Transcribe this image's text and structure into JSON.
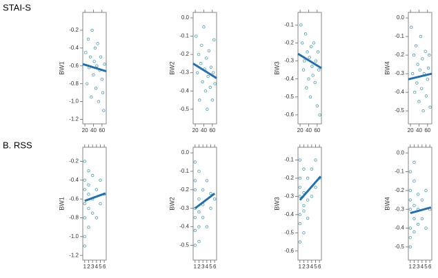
{
  "sections": [
    "STAI-S",
    "B. RSS"
  ],
  "chart_data": [
    {
      "type": "scatter",
      "ylabel": "BW1",
      "xlim": [
        15,
        70
      ],
      "xticks": [
        20,
        40,
        60
      ],
      "ylim": [
        -1.25,
        0
      ],
      "yticks": [
        -0.2,
        -0.4,
        -0.6,
        -0.8,
        {
          "value": -1.0,
          "label": "-1.0"
        },
        -1.2
      ],
      "points": {
        "color": "#4a9bb0",
        "x": [
          22,
          25,
          28,
          30,
          33,
          35,
          37,
          40,
          42,
          44,
          46,
          48,
          50,
          52,
          55,
          57,
          60,
          62,
          64,
          66
        ],
        "y": [
          -0.45,
          -0.8,
          -0.3,
          -0.62,
          -0.5,
          -0.95,
          -0.2,
          -0.7,
          -0.55,
          -0.4,
          -0.85,
          -0.6,
          -0.35,
          -1.0,
          -0.65,
          -0.5,
          -0.75,
          -0.9,
          -1.1,
          -0.58
        ]
      },
      "fit": {
        "color": "#1f6fb4",
        "x": [
          15,
          70
        ],
        "y": [
          -0.58,
          -0.66
        ]
      }
    },
    {
      "type": "scatter",
      "ylabel": "BW2",
      "xlim": [
        15,
        70
      ],
      "xticks": [
        20,
        40,
        60
      ],
      "ylim": [
        -0.58,
        0.03
      ],
      "yticks": [
        {
          "value": 0,
          "label": "0.0"
        },
        -0.1,
        -0.2,
        -0.3,
        -0.4,
        -0.5
      ],
      "points": {
        "color": "#4a9bb0",
        "x": [
          22,
          25,
          28,
          30,
          33,
          35,
          37,
          40,
          42,
          44,
          46,
          48,
          50,
          52,
          55,
          57,
          60,
          62,
          64,
          66
        ],
        "y": [
          -0.1,
          -0.3,
          -0.2,
          -0.45,
          -0.25,
          -0.15,
          -0.35,
          -0.05,
          -0.28,
          -0.4,
          -0.22,
          -0.5,
          -0.32,
          -0.18,
          -0.38,
          -0.27,
          -0.45,
          -0.3,
          -0.12,
          -0.36
        ]
      },
      "fit": {
        "color": "#1f6fb4",
        "x": [
          15,
          70
        ],
        "y": [
          -0.25,
          -0.33
        ]
      }
    },
    {
      "type": "scatter",
      "ylabel": "BW3",
      "xlim": [
        15,
        70
      ],
      "xticks": [
        20,
        40,
        60
      ],
      "ylim": [
        -0.65,
        -0.03
      ],
      "yticks": [
        -0.1,
        -0.2,
        -0.3,
        -0.4,
        -0.5,
        -0.6
      ],
      "points": {
        "color": "#4a9bb0",
        "x": [
          22,
          25,
          28,
          30,
          33,
          35,
          37,
          40,
          42,
          44,
          46,
          48,
          50,
          52,
          55,
          57,
          60,
          62,
          64,
          66
        ],
        "y": [
          -0.1,
          -0.2,
          -0.35,
          -0.3,
          -0.15,
          -0.45,
          -0.25,
          -0.4,
          -0.28,
          -0.5,
          -0.22,
          -0.33,
          -0.38,
          -0.2,
          -0.42,
          -0.3,
          -0.55,
          -0.25,
          -0.35,
          -0.6
        ]
      },
      "fit": {
        "color": "#1f6fb4",
        "x": [
          15,
          70
        ],
        "y": [
          -0.26,
          -0.34
        ]
      }
    },
    {
      "type": "scatter",
      "ylabel": "BW4",
      "xlim": [
        15,
        70
      ],
      "xticks": [
        20,
        40,
        60
      ],
      "ylim": [
        -0.57,
        0.03
      ],
      "yticks": [
        {
          "value": 0,
          "label": "0.0"
        },
        -0.1,
        -0.2,
        -0.3,
        -0.4,
        -0.5
      ],
      "points": {
        "color": "#4a9bb0",
        "x": [
          22,
          25,
          28,
          30,
          33,
          35,
          37,
          40,
          42,
          44,
          46,
          48,
          50,
          52,
          55,
          57,
          60,
          62,
          64,
          66
        ],
        "y": [
          -0.05,
          -0.3,
          -0.2,
          -0.4,
          -0.15,
          -0.35,
          -0.25,
          -0.45,
          -0.28,
          -0.1,
          -0.38,
          -0.22,
          -0.5,
          -0.3,
          -0.18,
          -0.42,
          -0.33,
          -0.27,
          -0.2,
          -0.48
        ]
      },
      "fit": {
        "color": "#1f6fb4",
        "x": [
          15,
          70
        ],
        "y": [
          -0.33,
          -0.3
        ]
      }
    },
    {
      "type": "scatter",
      "ylabel": "BW1",
      "xlim": [
        0.5,
        6.5
      ],
      "xticks": [
        1,
        2,
        3,
        4,
        5,
        6
      ],
      "ylim": [
        -1.25,
        -0.05
      ],
      "yticks": [
        -0.2,
        -0.4,
        -0.6,
        -0.8,
        {
          "value": -1.0,
          "label": "-1.0"
        },
        -1.2
      ],
      "points": {
        "color": "#4a9bb0",
        "x": [
          1,
          1,
          1,
          1,
          1,
          1,
          1,
          2,
          2,
          2,
          2,
          2,
          3,
          3,
          3,
          4,
          4,
          5,
          5,
          6
        ],
        "y": [
          -0.2,
          -0.5,
          -0.8,
          -1.0,
          -0.65,
          -0.4,
          -1.1,
          -0.3,
          -0.7,
          -0.55,
          -0.9,
          -0.45,
          -0.6,
          -0.35,
          -0.75,
          -0.5,
          -0.8,
          -0.4,
          -0.65,
          -0.55
        ]
      },
      "fit": {
        "color": "#1f6fb4",
        "x": [
          1,
          6.3
        ],
        "y": [
          -0.62,
          -0.54
        ]
      }
    },
    {
      "type": "scatter",
      "ylabel": "BW2",
      "xlim": [
        0.5,
        6.5
      ],
      "xticks": [
        1,
        2,
        3,
        4,
        5,
        6
      ],
      "ylim": [
        -0.58,
        0.03
      ],
      "yticks": [
        {
          "value": 0,
          "label": "0.0"
        },
        -0.1,
        -0.2,
        -0.3,
        -0.4,
        -0.5
      ],
      "points": {
        "color": "#4a9bb0",
        "x": [
          1,
          1,
          1,
          1,
          1,
          1,
          1,
          2,
          2,
          2,
          2,
          2,
          3,
          3,
          3,
          4,
          4,
          5,
          5,
          6
        ],
        "y": [
          -0.05,
          -0.2,
          -0.35,
          -0.5,
          -0.3,
          -0.42,
          -0.15,
          -0.1,
          -0.25,
          -0.4,
          -0.32,
          -0.48,
          -0.2,
          -0.35,
          -0.28,
          -0.15,
          -0.4,
          -0.22,
          -0.3,
          -0.25
        ]
      },
      "fit": {
        "color": "#1f6fb4",
        "x": [
          1,
          6
        ],
        "y": [
          -0.3,
          -0.22
        ]
      }
    },
    {
      "type": "scatter",
      "ylabel": "BW3",
      "xlim": [
        0.5,
        6.5
      ],
      "xticks": [
        1,
        2,
        3,
        4,
        5,
        6
      ],
      "ylim": [
        -0.65,
        -0.03
      ],
      "yticks": [
        -0.1,
        -0.2,
        -0.3,
        -0.4,
        -0.5,
        -0.6
      ],
      "points": {
        "color": "#4a9bb0",
        "x": [
          1,
          1,
          1,
          1,
          1,
          1,
          1,
          2,
          2,
          2,
          2,
          2,
          3,
          3,
          3,
          4,
          4,
          5,
          5,
          6
        ],
        "y": [
          -0.1,
          -0.25,
          -0.4,
          -0.55,
          -0.3,
          -0.45,
          -0.2,
          -0.15,
          -0.35,
          -0.5,
          -0.28,
          -0.38,
          -0.2,
          -0.32,
          -0.42,
          -0.15,
          -0.3,
          -0.1,
          -0.25,
          -0.2
        ]
      },
      "fit": {
        "color": "#1f6fb4",
        "x": [
          1,
          6.3
        ],
        "y": [
          -0.32,
          -0.19
        ]
      }
    },
    {
      "type": "scatter",
      "ylabel": "BW4",
      "xlim": [
        0.5,
        6.5
      ],
      "xticks": [
        1,
        2,
        3,
        4,
        5,
        6
      ],
      "ylim": [
        -0.57,
        0.03
      ],
      "yticks": [
        {
          "value": 0,
          "label": "0.0"
        },
        -0.1,
        -0.2,
        -0.3,
        -0.4,
        -0.5
      ],
      "points": {
        "color": "#4a9bb0",
        "x": [
          1,
          1,
          1,
          1,
          1,
          1,
          1,
          2,
          2,
          2,
          2,
          2,
          3,
          3,
          3,
          4,
          4,
          5,
          5,
          6
        ],
        "y": [
          -0.1,
          -0.25,
          -0.4,
          -0.5,
          -0.3,
          -0.2,
          -0.45,
          -0.05,
          -0.35,
          -0.28,
          -0.42,
          -0.15,
          -0.3,
          -0.38,
          -0.22,
          -0.35,
          -0.25,
          -0.2,
          -0.4,
          -0.3
        ]
      },
      "fit": {
        "color": "#1f6fb4",
        "x": [
          1,
          6.3
        ],
        "y": [
          -0.32,
          -0.29
        ]
      }
    }
  ]
}
